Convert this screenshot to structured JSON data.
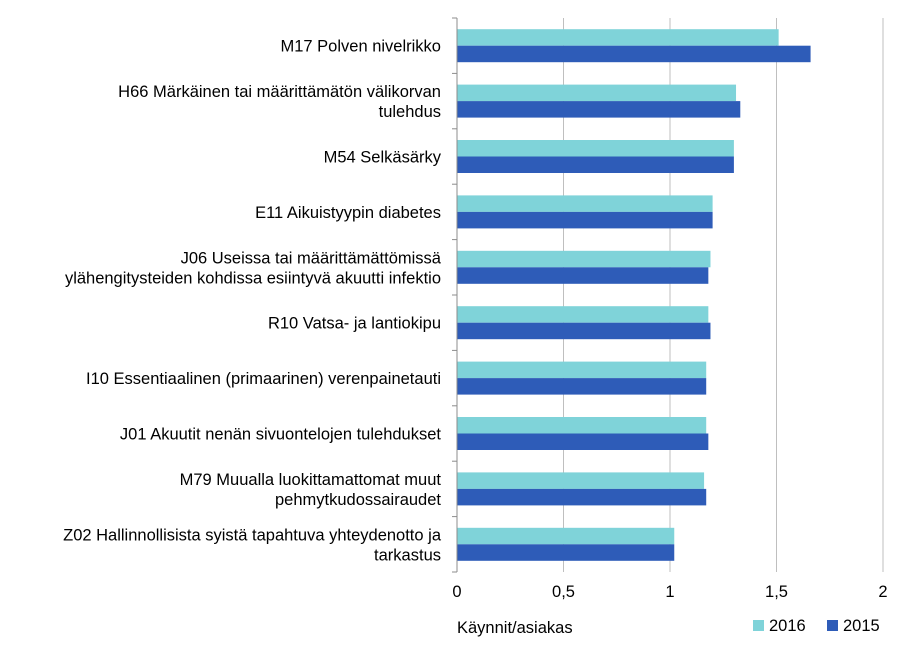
{
  "chart_data": {
    "type": "bar",
    "orientation": "horizontal",
    "title": "",
    "xlabel": "Käynnit/asiakas",
    "ylabel": "",
    "xlim": [
      0,
      2
    ],
    "x_ticks": [
      0,
      0.5,
      1,
      1.5,
      2
    ],
    "x_tick_labels": [
      "0",
      "0,5",
      "1",
      "1,5",
      "2"
    ],
    "grid": "vertical",
    "legend_position": "bottom-right",
    "categories": [
      [
        "M17 Polven nivelrikko"
      ],
      [
        "H66 Märkäinen tai määrittämätön välikorvan",
        "tulehdus"
      ],
      [
        "M54 Selkäsärky"
      ],
      [
        "E11 Aikuistyypin diabetes"
      ],
      [
        "J06 Useissa tai määrittämättömissä",
        "ylähengitysteiden kohdissa esiintyvä akuutti infektio"
      ],
      [
        "R10 Vatsa- ja lantiokipu"
      ],
      [
        "I10 Essentiaalinen (primaarinen) verenpainetauti"
      ],
      [
        "J01 Akuutit nenän sivuontelojen tulehdukset"
      ],
      [
        "M79 Muualla luokittamattomat muut",
        "pehmytkudossairaudet"
      ],
      [
        "Z02 Hallinnollisista syistä tapahtuva yhteydenotto ja",
        "tarkastus"
      ]
    ],
    "series": [
      {
        "name": "2016",
        "color": "#7fd3d9",
        "values": [
          1.51,
          1.31,
          1.3,
          1.2,
          1.19,
          1.18,
          1.17,
          1.17,
          1.16,
          1.02
        ]
      },
      {
        "name": "2015",
        "color": "#2e5cb8",
        "values": [
          1.66,
          1.33,
          1.3,
          1.2,
          1.18,
          1.19,
          1.17,
          1.18,
          1.17,
          1.02
        ]
      }
    ]
  }
}
